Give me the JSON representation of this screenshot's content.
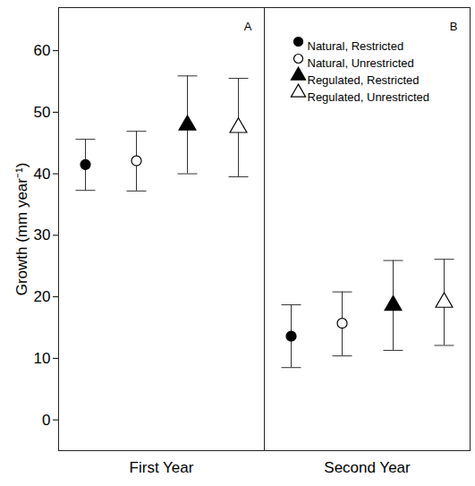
{
  "chart_data": {
    "type": "scatter",
    "categories": [
      "First Year",
      "Second Year"
    ],
    "y_label": "Growth (mm year⁻¹)",
    "annotations": [
      "A",
      "B"
    ],
    "ylim": [
      -5,
      67
    ],
    "yticks": [
      0,
      10,
      20,
      30,
      40,
      50,
      60
    ],
    "grid": false,
    "legend": "top-right",
    "series": [
      {
        "name": "Natural, Restricted",
        "marker": "circle",
        "color": "black",
        "values": [
          41.5,
          13.6
        ],
        "lower": [
          37.3,
          8.5
        ],
        "upper": [
          45.6,
          18.7
        ]
      },
      {
        "name": "Natural, Unrestricted",
        "marker": "circle-open",
        "color": "black",
        "values": [
          42.1,
          15.7
        ],
        "lower": [
          37.2,
          10.4
        ],
        "upper": [
          46.9,
          20.8
        ]
      },
      {
        "name": "Regulated, Restricted",
        "marker": "triangle",
        "color": "black",
        "values": [
          47.9,
          18.6
        ],
        "lower": [
          40.0,
          11.3
        ],
        "upper": [
          55.9,
          25.9
        ]
      },
      {
        "name": "Regulated, Unrestricted",
        "marker": "triangle-open",
        "color": "black",
        "values": [
          47.5,
          19.1
        ],
        "lower": [
          39.5,
          12.1
        ],
        "upper": [
          55.5,
          26.1
        ]
      }
    ]
  }
}
